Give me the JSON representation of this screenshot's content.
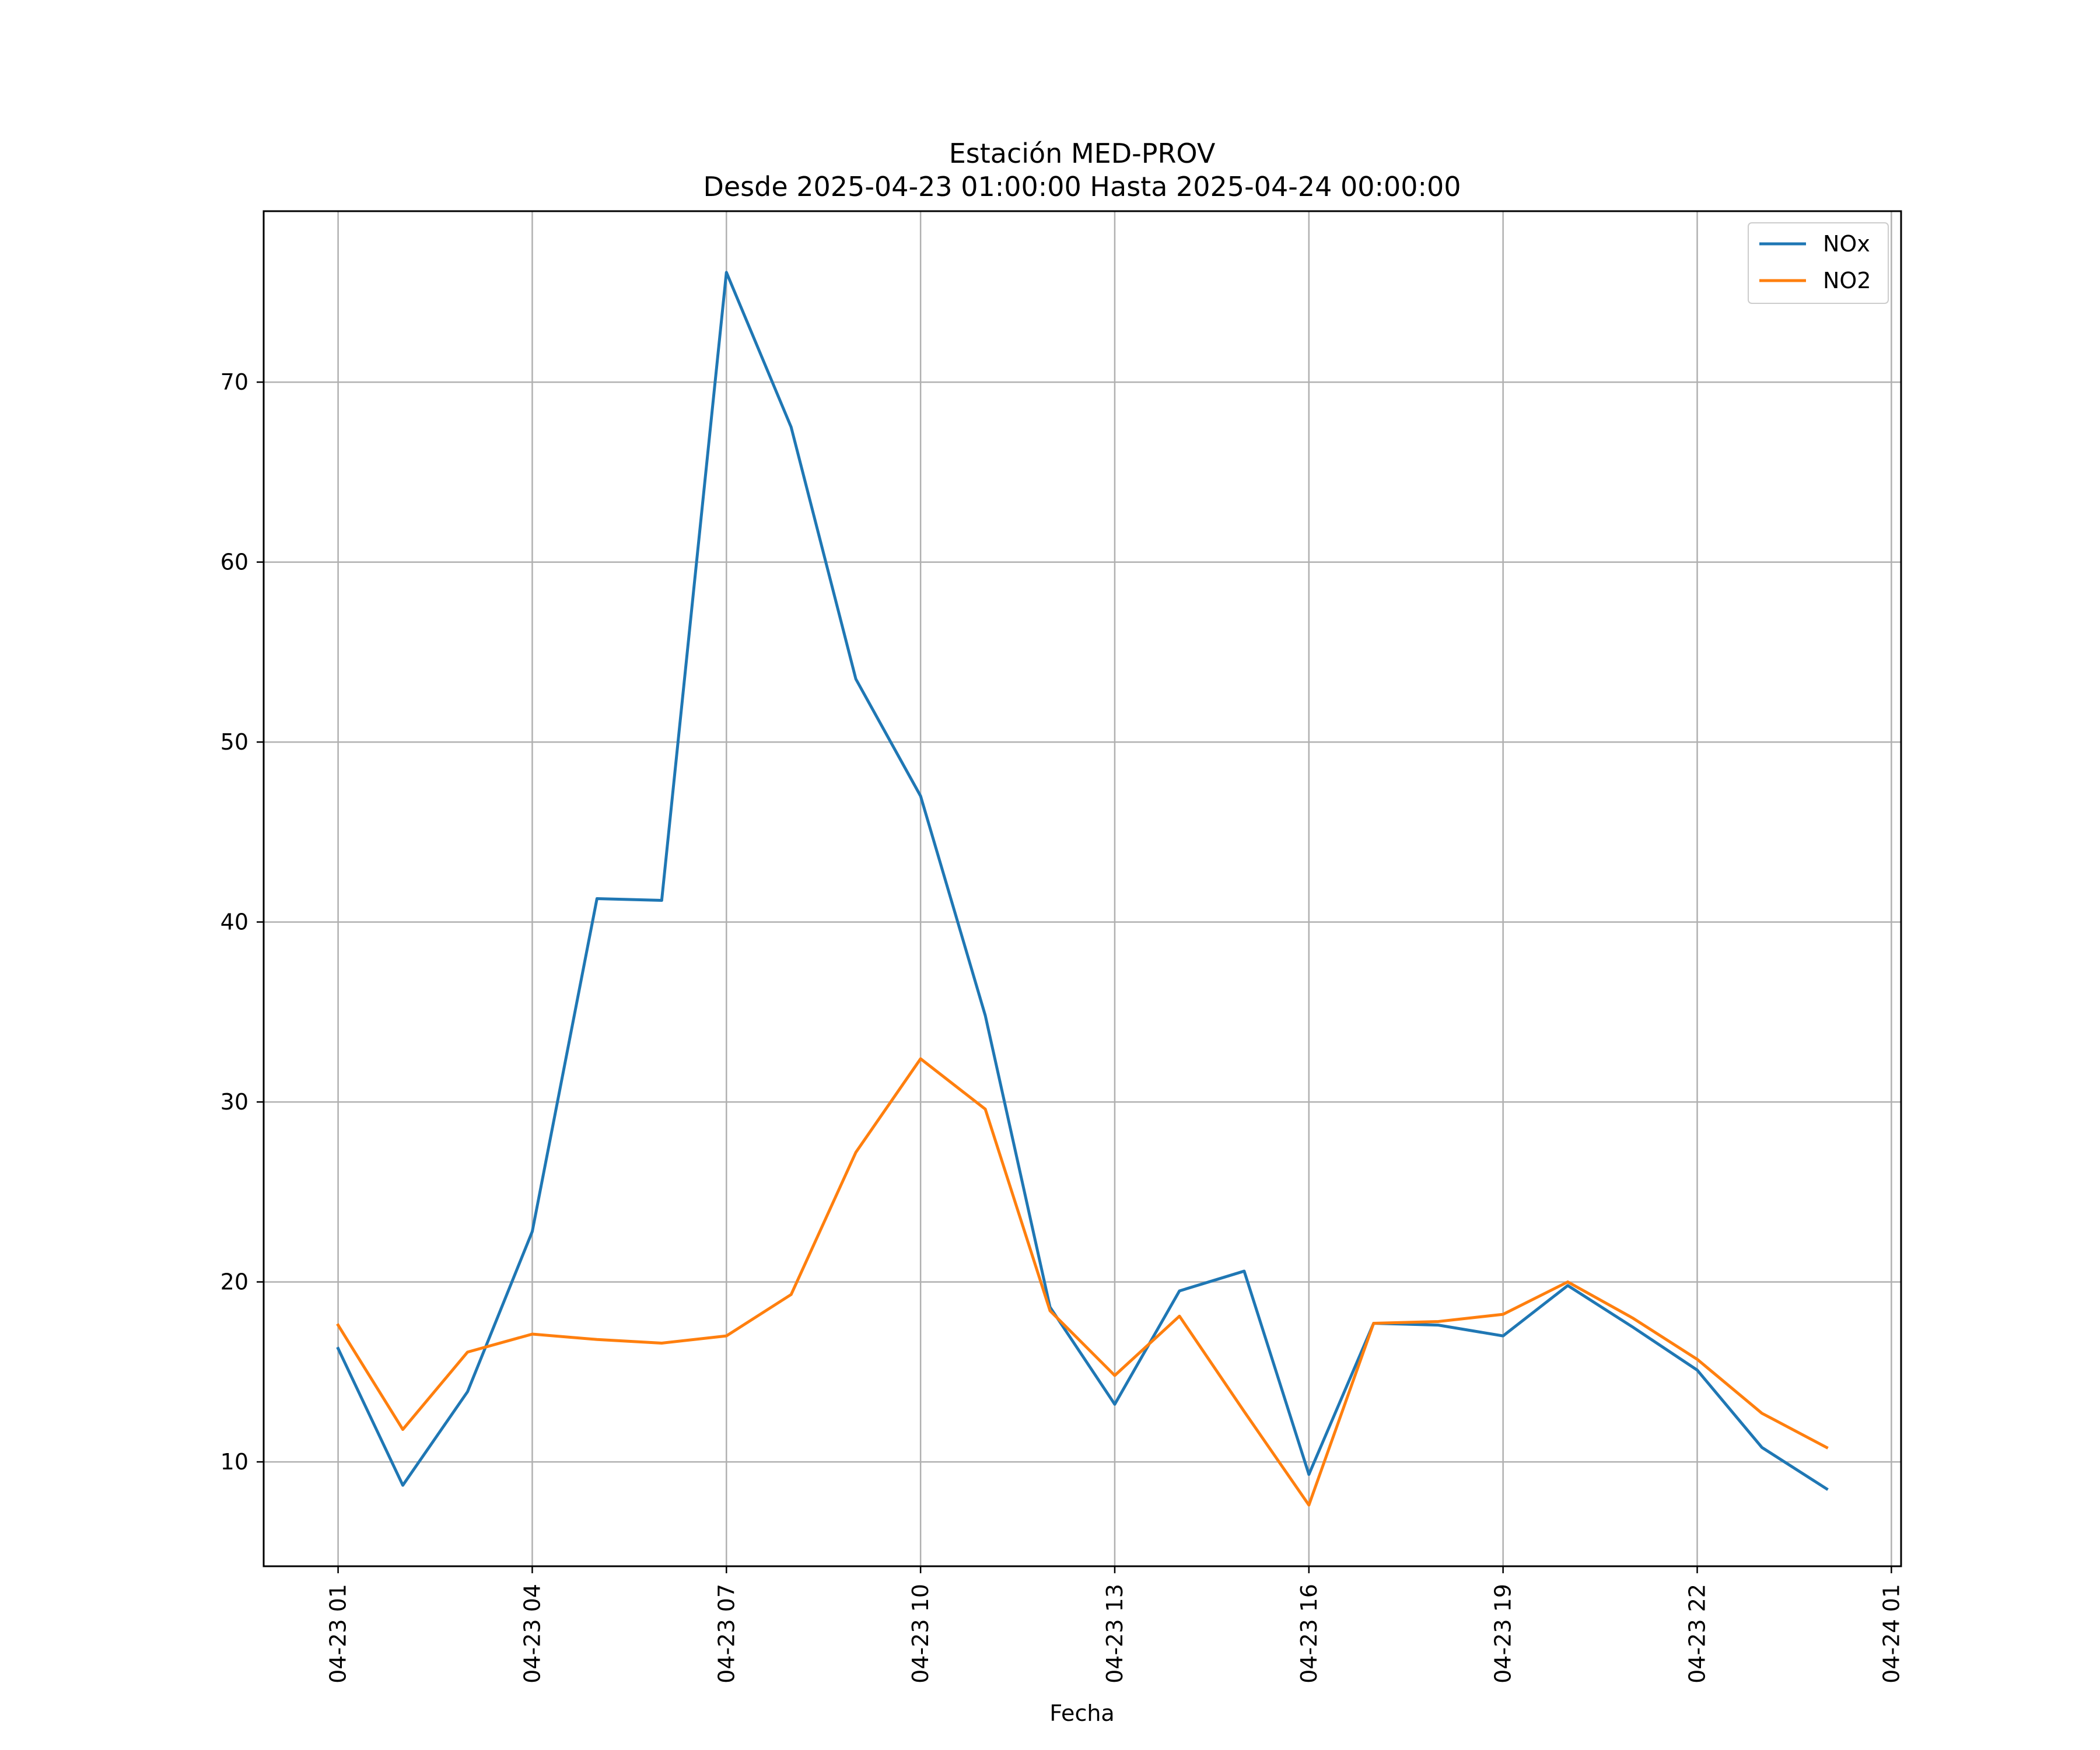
{
  "chart_data": {
    "type": "line",
    "title": "Estación MED-PROV",
    "subtitle": "Desde 2025-04-23 01:00:00 Hasta 2025-04-24 00:00:00",
    "xlabel": "Fecha",
    "ylabel": "",
    "x": [
      "2025-04-23 01:00",
      "2025-04-23 02:00",
      "2025-04-23 03:00",
      "2025-04-23 04:00",
      "2025-04-23 05:00",
      "2025-04-23 06:00",
      "2025-04-23 07:00",
      "2025-04-23 08:00",
      "2025-04-23 09:00",
      "2025-04-23 10:00",
      "2025-04-23 11:00",
      "2025-04-23 12:00",
      "2025-04-23 13:00",
      "2025-04-23 14:00",
      "2025-04-23 15:00",
      "2025-04-23 16:00",
      "2025-04-23 17:00",
      "2025-04-23 18:00",
      "2025-04-23 19:00",
      "2025-04-23 20:00",
      "2025-04-23 21:00",
      "2025-04-23 22:00",
      "2025-04-23 23:00",
      "2025-04-24 00:00"
    ],
    "x_ticks": [
      {
        "value": "2025-04-23 01:00",
        "label": "04-23 01"
      },
      {
        "value": "2025-04-23 04:00",
        "label": "04-23 04"
      },
      {
        "value": "2025-04-23 07:00",
        "label": "04-23 07"
      },
      {
        "value": "2025-04-23 10:00",
        "label": "04-23 10"
      },
      {
        "value": "2025-04-23 13:00",
        "label": "04-23 13"
      },
      {
        "value": "2025-04-23 16:00",
        "label": "04-23 16"
      },
      {
        "value": "2025-04-23 19:00",
        "label": "04-23 19"
      },
      {
        "value": "2025-04-23 22:00",
        "label": "04-23 22"
      },
      {
        "value": "2025-04-24 01:00",
        "label": "04-24 01"
      }
    ],
    "xlim": [
      "2025-04-22 23:51",
      "2025-04-24 01:09"
    ],
    "y_ticks": [
      10,
      20,
      30,
      40,
      50,
      60,
      70
    ],
    "ylim": [
      4.2,
      79.5
    ],
    "grid": true,
    "legend_position": "top-right",
    "series": [
      {
        "name": "NOx",
        "color": "#1f77b4",
        "values": [
          16.3,
          8.7,
          13.9,
          22.8,
          41.3,
          41.2,
          76.1,
          67.5,
          53.5,
          47.0,
          34.8,
          18.6,
          13.2,
          19.5,
          20.6,
          9.3,
          17.7,
          17.6,
          17.0,
          19.8,
          17.5,
          15.1,
          10.8,
          8.5
        ]
      },
      {
        "name": "NO2",
        "color": "#ff7f0e",
        "values": [
          17.6,
          11.8,
          16.1,
          17.1,
          16.8,
          16.6,
          17.0,
          19.3,
          27.2,
          32.4,
          29.6,
          18.4,
          14.8,
          18.1,
          12.8,
          7.6,
          17.7,
          17.8,
          18.2,
          20.0,
          18.0,
          15.7,
          12.7,
          10.8
        ]
      }
    ]
  },
  "colors": {
    "grid": "#b0b0b0",
    "axes": "#000000",
    "background": "#ffffff"
  }
}
